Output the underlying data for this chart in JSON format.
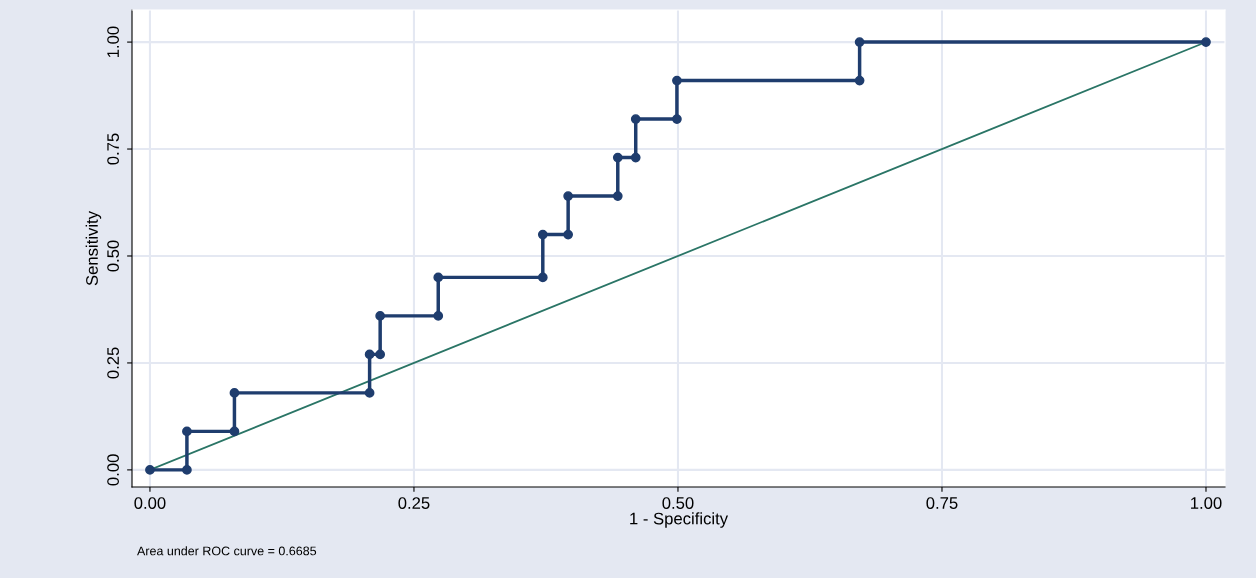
{
  "chart_data": {
    "type": "step",
    "xlabel": "1 - Specificity",
    "ylabel": "Sensitivity",
    "xlim": [
      -0.017,
      1.018
    ],
    "ylim": [
      -0.04,
      1.075
    ],
    "xticks": [
      {
        "value": 0,
        "label": "0.00"
      },
      {
        "value": 0.25,
        "label": "0.25"
      },
      {
        "value": 0.5,
        "label": "0.50"
      },
      {
        "value": 0.75,
        "label": "0.75"
      },
      {
        "value": 1,
        "label": "1.00"
      }
    ],
    "yticks": [
      {
        "value": 0,
        "label": "0.00"
      },
      {
        "value": 0.25,
        "label": "0.25"
      },
      {
        "value": 0.5,
        "label": "0.50"
      },
      {
        "value": 0.75,
        "label": "0.75"
      },
      {
        "value": 1,
        "label": "1.00"
      }
    ],
    "grid": true,
    "marker": "circle",
    "series": [
      {
        "color": "#1f3d6e",
        "x": [
          0,
          0.035,
          0.035,
          0.08,
          0.08,
          0.208,
          0.208,
          0.218,
          0.218,
          0.273,
          0.273,
          0.372,
          0.372,
          0.396,
          0.396,
          0.443,
          0.443,
          0.46,
          0.46,
          0.499,
          0.499,
          0.672,
          0.672,
          1.0
        ],
        "values": [
          0,
          0,
          0.09,
          0.09,
          0.18,
          0.18,
          0.27,
          0.27,
          0.36,
          0.36,
          0.45,
          0.45,
          0.55,
          0.55,
          0.64,
          0.64,
          0.73,
          0.73,
          0.82,
          0.82,
          0.91,
          0.91,
          1.0,
          1.0
        ]
      },
      {
        "type": "line",
        "color": "#2a7566",
        "marker": "none",
        "x": [
          0,
          1
        ],
        "values": [
          0,
          1
        ]
      }
    ],
    "annotations": [
      "Area under ROC curve = 0.6685"
    ]
  }
}
